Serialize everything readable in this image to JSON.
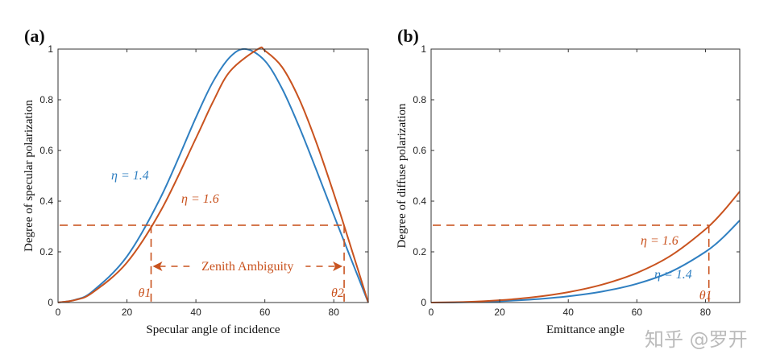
{
  "chart_data": [
    {
      "panel_label": "(a)",
      "type": "line",
      "xlabel": "Specular angle of incidence",
      "ylabel": "Degree of specular polarization",
      "xlim": [
        0,
        90
      ],
      "ylim": [
        0,
        1
      ],
      "xticks": [
        "0",
        "20",
        "40",
        "60",
        "80"
      ],
      "yticks": [
        "0",
        "0.2",
        "0.4",
        "0.6",
        "0.8",
        "1"
      ],
      "grid": false,
      "series": [
        {
          "name": "η = 1.4",
          "color": "#2f7fc1",
          "x": [
            0,
            5,
            10,
            20,
            30,
            40,
            45,
            50,
            54.5,
            60,
            65,
            70,
            75,
            80,
            85,
            90
          ],
          "y": [
            0,
            0.011,
            0.044,
            0.182,
            0.421,
            0.73,
            0.872,
            0.97,
            1.0,
            0.954,
            0.844,
            0.692,
            0.521,
            0.345,
            0.172,
            0
          ]
        },
        {
          "name": "η = 1.6",
          "color": "#c9531f",
          "x": [
            0,
            5,
            10,
            20,
            30,
            40,
            45,
            50,
            58,
            60,
            65,
            70,
            75,
            80,
            85,
            90
          ],
          "y": [
            0,
            0.01,
            0.039,
            0.158,
            0.367,
            0.648,
            0.793,
            0.914,
            1.0,
            0.994,
            0.929,
            0.802,
            0.629,
            0.43,
            0.217,
            0
          ]
        }
      ],
      "annotations": {
        "threshold_y": 0.305,
        "theta1_x": 27,
        "theta2_x": 83,
        "theta1_label": "θ1",
        "theta2_label": "θ2",
        "range_label": "Zenith Ambiguity",
        "color": "#c9531f"
      }
    },
    {
      "panel_label": "(b)",
      "type": "line",
      "xlabel": "Emittance angle",
      "ylabel": "Degree of diffuse polarization",
      "xlim": [
        0,
        90
      ],
      "ylim": [
        0,
        1
      ],
      "xticks": [
        "0",
        "20",
        "40",
        "60",
        "80"
      ],
      "yticks": [
        "0",
        "0.2",
        "0.4",
        "0.6",
        "0.8",
        "1"
      ],
      "grid": false,
      "series": [
        {
          "name": "η = 1.4",
          "color": "#2f7fc1",
          "x": [
            0,
            10,
            20,
            30,
            40,
            50,
            60,
            70,
            80,
            85,
            90
          ],
          "y": [
            0,
            0.0013,
            0.0052,
            0.0126,
            0.0246,
            0.0437,
            0.074,
            0.122,
            0.2,
            0.255,
            0.324
          ]
        },
        {
          "name": "η = 1.6",
          "color": "#c9531f",
          "x": [
            0,
            10,
            20,
            30,
            40,
            50,
            60,
            70,
            80,
            85,
            90
          ],
          "y": [
            0,
            0.0022,
            0.009,
            0.0213,
            0.041,
            0.0713,
            0.117,
            0.186,
            0.289,
            0.357,
            0.438
          ]
        }
      ],
      "annotations": {
        "threshold_y": 0.305,
        "theta1_x": 81,
        "theta1_label": "θ1",
        "color": "#c9531f"
      }
    }
  ],
  "watermark": "知乎 @罗开"
}
